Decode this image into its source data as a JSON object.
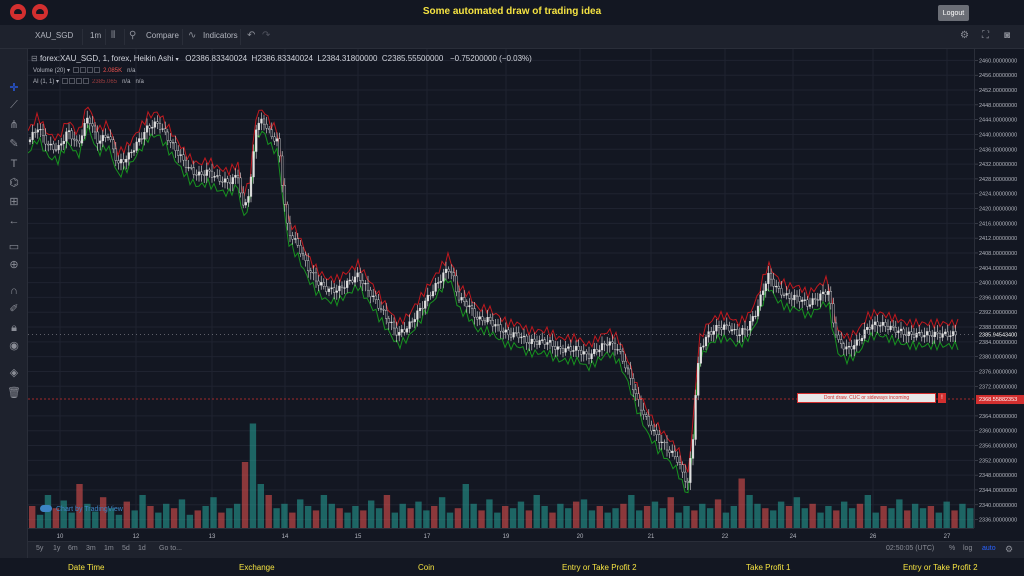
{
  "header": {
    "title": "Some automated draw of trading idea",
    "logout_label": "Logout",
    "logo_color": "#d32f2f",
    "title_color": "#f5e342"
  },
  "toolbar": {
    "symbol": "XAU_SGD",
    "interval": "1m",
    "compare_label": "Compare",
    "indicators_label": "Indicators",
    "icons": [
      "candles-icon",
      "compare-icon",
      "indicators-icon",
      "undo-icon",
      "redo-icon",
      "settings-icon",
      "fullscreen-icon",
      "camera-icon"
    ]
  },
  "left_tools": {
    "icons": [
      "crosshair-icon",
      "trend-line-icon",
      "pitchfork-icon",
      "brush-icon",
      "text-icon",
      "pattern-icon",
      "measure-icon",
      "back-arrow-icon",
      "ruler-icon",
      "zoom-in-icon",
      "magnet-icon",
      "lock-drawings-icon",
      "lock-icon",
      "eye-icon",
      "layers-icon",
      "trash-icon"
    ]
  },
  "legend": {
    "title": "forex:XAU_SGD, 1, forex, Heikin Ashi",
    "open": "O2386.83340024",
    "high": "H2386.83340024",
    "low": "L2384.31800000",
    "close": "C2385.55500000",
    "change": "−0.75200000 (−0.03%)",
    "volume_label": "Volume (20)",
    "volume_value": "2.085K",
    "volume_na": "n/a",
    "ai_label": "AI (1, 1)",
    "ai_value": "2385.065",
    "ai_na_1": "n/a",
    "ai_na_2": "n/a"
  },
  "watermark": "Chart by TradingView",
  "idea": {
    "text": "Dont draw. CUC or sideways incoming",
    "icon": "!",
    "price_label": "2368.55882353"
  },
  "current_price": "2385.94543400",
  "bottom_bar": {
    "ranges": [
      "5y",
      "1y",
      "6m",
      "3m",
      "1m",
      "5d",
      "1d"
    ],
    "goto_label": "Go to...",
    "time": "02:50:05 (UTC)",
    "percent_label": "%",
    "log_label": "log",
    "auto_label": "auto"
  },
  "footer": {
    "labels": [
      "Date Time",
      "Exchange",
      "Coin",
      "Entry or Take Profit 2",
      "Take Profit 1",
      "Entry or Take Profit 2"
    ]
  },
  "colors": {
    "background": "#131722",
    "panel": "#1e222d",
    "up_candle": "#e0e0e0",
    "down_candle": "#131722",
    "upper_band": "#c0181e",
    "lower_band": "#17931f",
    "volume_up": "#26a69a",
    "volume_down": "#ef5350",
    "idea_line": "#d32f2f",
    "auto_active": "#2962ff"
  },
  "chart_data": {
    "type": "candlestick",
    "style": "Heikin Ashi",
    "ylim": [
      2334,
      2462
    ],
    "price_ticks": [
      2460,
      2456,
      2452,
      2448,
      2444,
      2440,
      2436,
      2432,
      2428,
      2424,
      2420,
      2416,
      2412,
      2408,
      2404,
      2400,
      2396,
      2392,
      2388,
      2384,
      2380,
      2376,
      2372,
      2364,
      2360,
      2356,
      2352,
      2348,
      2344,
      2340,
      2336
    ],
    "time_ticks": [
      "10",
      "12",
      "13",
      "14",
      "15",
      "17",
      "19",
      "20",
      "21",
      "22",
      "24",
      "26",
      "27"
    ],
    "idea_price": 2368.55882353,
    "current_price": 2385.945434,
    "price_path": [
      [
        0,
        2438
      ],
      [
        10,
        2442
      ],
      [
        20,
        2437
      ],
      [
        30,
        2436
      ],
      [
        40,
        2441
      ],
      [
        50,
        2437
      ],
      [
        60,
        2445
      ],
      [
        70,
        2438
      ],
      [
        80,
        2440
      ],
      [
        90,
        2432
      ],
      [
        100,
        2434
      ],
      [
        110,
        2438
      ],
      [
        120,
        2442
      ],
      [
        130,
        2443
      ],
      [
        140,
        2439
      ],
      [
        150,
        2435
      ],
      [
        160,
        2431
      ],
      [
        170,
        2429
      ],
      [
        180,
        2430
      ],
      [
        190,
        2428
      ],
      [
        200,
        2427
      ],
      [
        210,
        2429
      ],
      [
        215,
        2420
      ],
      [
        222,
        2425
      ],
      [
        228,
        2442
      ],
      [
        235,
        2444
      ],
      [
        242,
        2440
      ],
      [
        250,
        2438
      ],
      [
        255,
        2425
      ],
      [
        260,
        2414
      ],
      [
        270,
        2410
      ],
      [
        280,
        2404
      ],
      [
        290,
        2400
      ],
      [
        300,
        2398
      ],
      [
        310,
        2398
      ],
      [
        320,
        2400
      ],
      [
        330,
        2402
      ],
      [
        340,
        2398
      ],
      [
        350,
        2394
      ],
      [
        360,
        2390
      ],
      [
        370,
        2386
      ],
      [
        380,
        2388
      ],
      [
        390,
        2392
      ],
      [
        400,
        2396
      ],
      [
        410,
        2400
      ],
      [
        420,
        2404
      ],
      [
        425,
        2402
      ],
      [
        430,
        2396
      ],
      [
        440,
        2394
      ],
      [
        450,
        2390
      ],
      [
        460,
        2390
      ],
      [
        470,
        2388
      ],
      [
        480,
        2386
      ],
      [
        490,
        2386
      ],
      [
        500,
        2384
      ],
      [
        510,
        2384
      ],
      [
        520,
        2384
      ],
      [
        530,
        2382
      ],
      [
        540,
        2382
      ],
      [
        550,
        2382
      ],
      [
        560,
        2380
      ],
      [
        570,
        2382
      ],
      [
        580,
        2384
      ],
      [
        590,
        2382
      ],
      [
        600,
        2376
      ],
      [
        610,
        2368
      ],
      [
        620,
        2362
      ],
      [
        630,
        2358
      ],
      [
        640,
        2355
      ],
      [
        650,
        2352
      ],
      [
        655,
        2348
      ],
      [
        660,
        2346
      ],
      [
        665,
        2358
      ],
      [
        668,
        2372
      ],
      [
        672,
        2382
      ],
      [
        680,
        2386
      ],
      [
        690,
        2388
      ],
      [
        700,
        2388
      ],
      [
        710,
        2386
      ],
      [
        720,
        2388
      ],
      [
        728,
        2392
      ],
      [
        735,
        2398
      ],
      [
        740,
        2402
      ],
      [
        745,
        2400
      ],
      [
        750,
        2398
      ],
      [
        760,
        2396
      ],
      [
        770,
        2396
      ],
      [
        780,
        2394
      ],
      [
        790,
        2396
      ],
      [
        800,
        2398
      ],
      [
        805,
        2390
      ],
      [
        810,
        2384
      ],
      [
        820,
        2382
      ],
      [
        830,
        2384
      ],
      [
        840,
        2388
      ],
      [
        850,
        2389
      ],
      [
        860,
        2388
      ],
      [
        870,
        2387
      ],
      [
        880,
        2386
      ],
      [
        890,
        2386
      ],
      [
        910,
        2386
      ]
    ],
    "volume_series": [
      20,
      12,
      30,
      18,
      25,
      14,
      40,
      22,
      15,
      28,
      18,
      12,
      24,
      16,
      30,
      20,
      14,
      22,
      18,
      26,
      12,
      16,
      20,
      28,
      14,
      18,
      22,
      60,
      95,
      40,
      30,
      18,
      22,
      14,
      26,
      20,
      16,
      30,
      22,
      18,
      14,
      20,
      16,
      25,
      18,
      30,
      14,
      22,
      18,
      24,
      16,
      20,
      28,
      14,
      18,
      40,
      22,
      16,
      26,
      14,
      20,
      18,
      24,
      16,
      30,
      20,
      14,
      22,
      18,
      24,
      26,
      16,
      20,
      14,
      18,
      22,
      30,
      16,
      20,
      24,
      18,
      28,
      14,
      20,
      16,
      22,
      18,
      26,
      14,
      20,
      45,
      30,
      22,
      18,
      16,
      24,
      20,
      28,
      18,
      22,
      14,
      20,
      16,
      24,
      18,
      22,
      30,
      14,
      20,
      18,
      26,
      16,
      22,
      18,
      20,
      14,
      24,
      16,
      22,
      18
    ]
  }
}
